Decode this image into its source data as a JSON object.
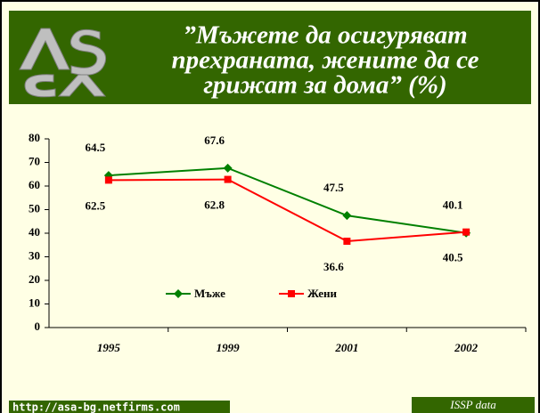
{
  "chart_data": {
    "type": "line",
    "title_lines": [
      "”Мъжете да осигуряват",
      "прехраната, жените да се",
      "грижат за дома” (%)"
    ],
    "categories": [
      "1995",
      "1999",
      "2001",
      "2002"
    ],
    "series": [
      {
        "name": "Мъже",
        "color": "#008000",
        "marker": "diamond",
        "values": [
          64.5,
          67.6,
          47.5,
          40.1
        ]
      },
      {
        "name": "Жени",
        "color": "#ff0000",
        "marker": "square",
        "values": [
          62.5,
          62.8,
          36.6,
          40.5
        ]
      }
    ],
    "ylim": [
      0,
      80
    ],
    "yticks": [
      0,
      10,
      20,
      30,
      40,
      50,
      60,
      70,
      80
    ],
    "grid": false,
    "footer_left": "http://asa-bg.netfirms.com",
    "footer_right": "ISSP data"
  }
}
